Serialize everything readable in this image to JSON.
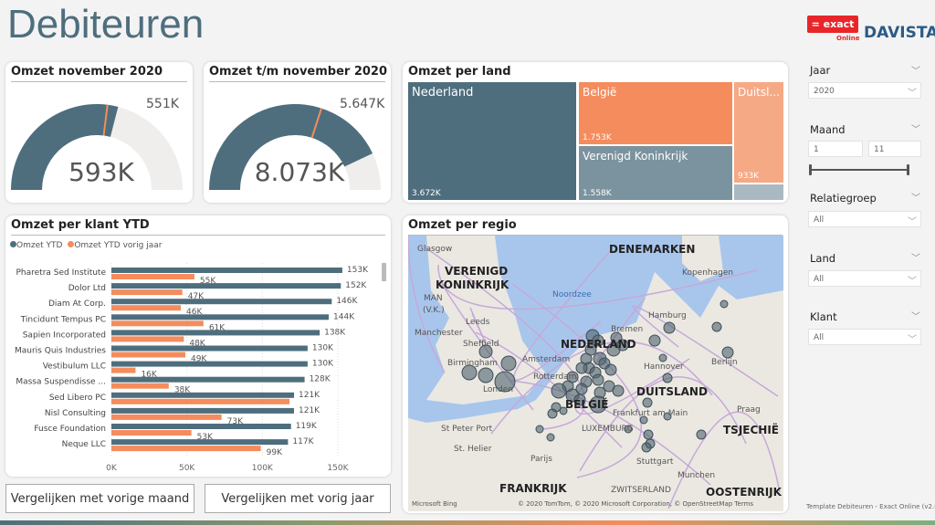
{
  "header": {
    "title": "Debiteuren",
    "logo_exact": "= exact",
    "logo_exact_sub": "Online",
    "logo_davista": "DAVISTA"
  },
  "gauges": [
    {
      "title": "Omzet november 2020",
      "value": "593K",
      "target": "551K",
      "color": "#4e6e7e"
    },
    {
      "title": "Omzet t/m november 2020",
      "value": "8.073K",
      "target": "5.647K",
      "color": "#4e6e7e"
    }
  ],
  "treemap": {
    "title": "Omzet per land",
    "items": [
      {
        "label": "Nederland",
        "value": "3.672K",
        "color": "#4e6e7e"
      },
      {
        "label": "België",
        "value": "1.753K",
        "color": "#f48c5d"
      },
      {
        "label": "Verenigd Koninkrijk",
        "value": "1.558K",
        "color": "#7b939e"
      },
      {
        "label": "Duitsl...",
        "value": "933K",
        "color": "#f6a985"
      },
      {
        "label": "",
        "value": "",
        "color": "#aab9c1"
      }
    ]
  },
  "chart_data": {
    "type": "bar",
    "title": "Omzet per klant YTD",
    "categories": [
      "Pharetra Sed Institute",
      "Dolor Ltd",
      "Diam At Corp.",
      "Tincidunt Tempus PC",
      "Sapien Incorporated",
      "Mauris Quis Industries",
      "Vestibulum LLC",
      "Massa Suspendisse ...",
      "Sed Libero PC",
      "Nisl Consulting",
      "Fusce Foundation",
      "Neque LLC"
    ],
    "series": [
      {
        "name": "Omzet YTD",
        "color": "#4e6e7e",
        "values": [
          153,
          152,
          146,
          144,
          138,
          130,
          130,
          128,
          121,
          121,
          119,
          117
        ],
        "labels": [
          "153K",
          "152K",
          "146K",
          "144K",
          "138K",
          "130K",
          "130K",
          "128K",
          "121K",
          "121K",
          "119K",
          "117K"
        ]
      },
      {
        "name": "Omzet YTD vorig jaar",
        "color": "#f48c5d",
        "values": [
          55,
          47,
          46,
          61,
          48,
          49,
          16,
          38,
          118,
          73,
          53,
          99
        ],
        "labels": [
          "55K",
          "47K",
          "46K",
          "61K",
          "48K",
          "49K",
          "16K",
          "38K",
          "",
          "73K",
          "53K",
          "99K"
        ]
      }
    ],
    "xticks": [
      "0K",
      "50K",
      "100K",
      "150K"
    ],
    "xlim": [
      0,
      160
    ],
    "legend": "top-left",
    "grid": true
  },
  "map": {
    "title": "Omzet per regio",
    "labels": {
      "denemarken": "DENEMARKEN",
      "vk1": "VERENIGD",
      "vk2": "KONINKRIJK",
      "noordzee": "Noordzee",
      "kopenhagen": "Kopenhagen",
      "glasgow": "Glasgow",
      "man": "MAN",
      "man2": "(V.K.)",
      "leeds": "Leeds",
      "manchester": "Manchester",
      "sheffield": "Sheffield",
      "birmingham": "Birmingham",
      "londen": "Londen",
      "hamburg": "Hamburg",
      "bremen": "Bremen",
      "amsterdam": "Amsterdam",
      "nederland": "NEDERLAND",
      "berlijn": "Berlijn",
      "hannover": "Hannover",
      "rotterdam": "Rotterdam",
      "duitsland": "DUITSLAND",
      "belgie": "BELGIË",
      "frankfurt": "Frankfurt am Main",
      "praag": "Praag",
      "tsjechie": "TSJECHIË",
      "luxemburg": "LUXEMBURG",
      "stpeter": "St Peter Port",
      "sthelier": "St. Helier",
      "parijs": "Parijs",
      "stuttgart": "Stuttgart",
      "munchen": "Munchen",
      "oostenrijk": "OOSTENRIJK",
      "frankrijk": "FRANKRIJK",
      "zwitserland": "ZWITSERLAND"
    },
    "attribution": "© 2020 TomTom, © 2020 Microsoft Corporation, © OpenStreetMap  Terms",
    "bing": "Microsoft Bing"
  },
  "buttons": {
    "prev_month": "Vergelijken met vorige maand",
    "prev_year": "Vergelijken met vorig jaar"
  },
  "filters": {
    "jaar": {
      "label": "Jaar",
      "value": "2020"
    },
    "maand": {
      "label": "Maand",
      "from": "1",
      "to": "11",
      "range": [
        1,
        11
      ]
    },
    "relatiegroep": {
      "label": "Relatiegroep",
      "value": "All"
    },
    "land": {
      "label": "Land",
      "value": "All"
    },
    "klant": {
      "label": "Klant",
      "value": "All"
    }
  },
  "footer": "Template Debiteuren - Exact Online (v2.0)"
}
